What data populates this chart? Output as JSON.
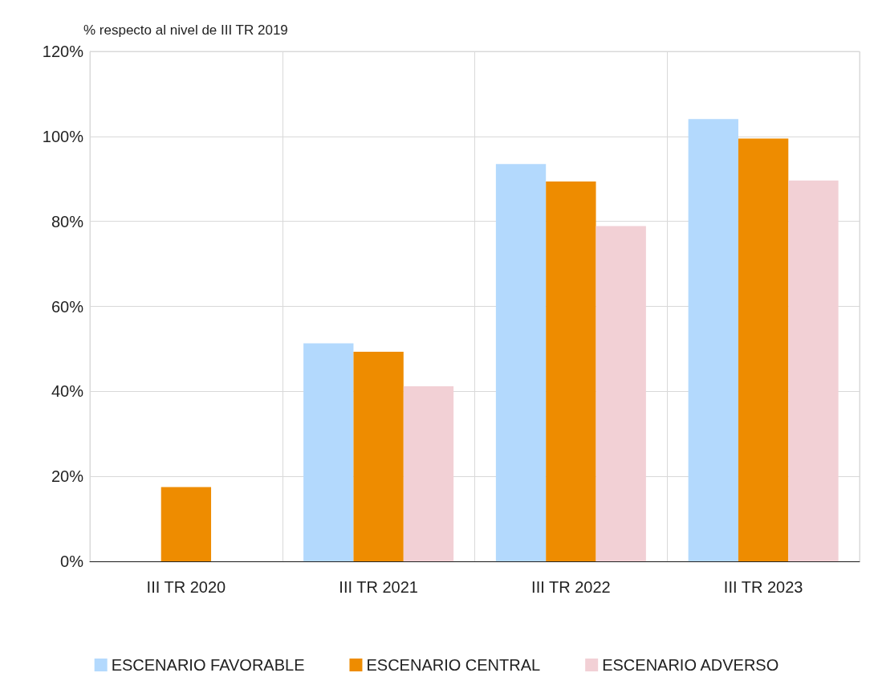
{
  "chart_data": {
    "type": "bar",
    "ylabel": "% respecto al nivel de III TR 2019",
    "categories": [
      "III TR 2020",
      "III TR 2021",
      "III TR 2022",
      "III TR 2023"
    ],
    "series": [
      {
        "name": "ESCENARIO FAVORABLE",
        "color": "#b3d9fd",
        "values": [
          null,
          51.3,
          93.5,
          104.1
        ]
      },
      {
        "name": "ESCENARIO CENTRAL",
        "color": "#ee8c00",
        "values": [
          17.5,
          49.3,
          89.4,
          99.5
        ]
      },
      {
        "name": "ESCENARIO ADVERSO",
        "color": "#f2d0d5",
        "values": [
          null,
          41.2,
          78.9,
          89.6
        ]
      }
    ],
    "ylim": [
      0,
      120
    ],
    "yticks": [
      {
        "value": 0,
        "label": "0%"
      },
      {
        "value": 20,
        "label": "20%"
      },
      {
        "value": 40,
        "label": "40%"
      },
      {
        "value": 60,
        "label": "60%"
      },
      {
        "value": 80,
        "label": "80%"
      },
      {
        "value": 100,
        "label": "100%"
      },
      {
        "value": 120,
        "label": "120%"
      }
    ],
    "grid": true,
    "legend": "bottom"
  }
}
